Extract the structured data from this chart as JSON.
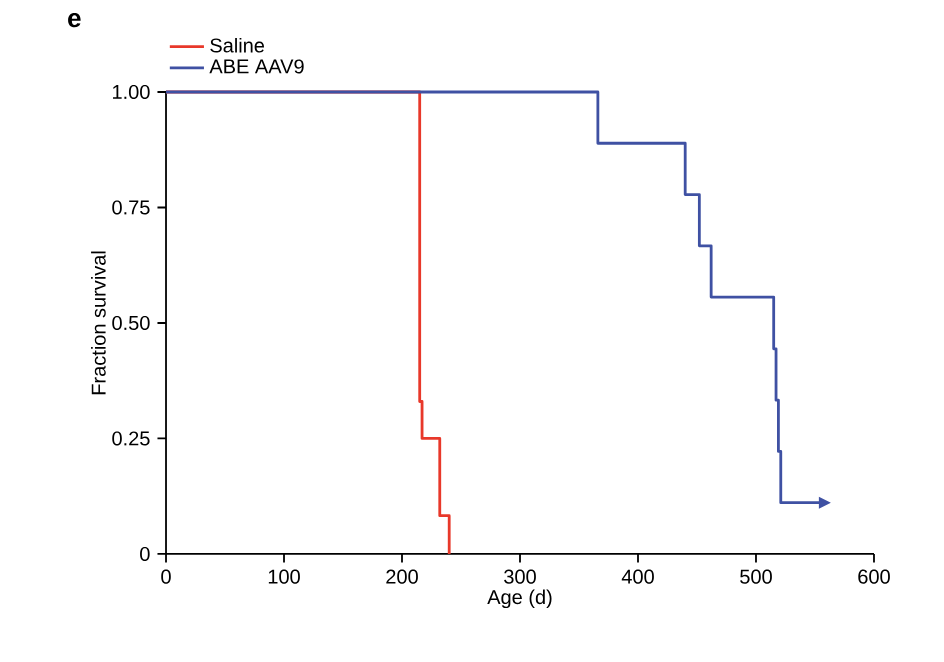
{
  "chart_data": {
    "type": "step",
    "xlabel": "Age (d)",
    "ylabel": "Fraction survival",
    "annotations": [
      "e"
    ],
    "series": [
      {
        "name": "Saline",
        "color": "#e8382a",
        "x": [
          0,
          215,
          217,
          232,
          240
        ],
        "values": [
          1,
          0.33,
          0.25,
          0.083,
          0
        ]
      },
      {
        "name": "ABE AAV9",
        "color": "#3f51a3",
        "x": [
          0,
          366,
          440,
          452,
          462,
          515,
          517,
          519,
          521,
          555
        ],
        "values": [
          1,
          0.889,
          0.778,
          0.667,
          0.556,
          0.444,
          0.333,
          0.222,
          0.111,
          0.111
        ]
      }
    ],
    "xlim": [
      0,
      600
    ],
    "xticks": [
      0,
      100,
      200,
      300,
      400,
      500,
      600
    ],
    "ylim": [
      0,
      1
    ],
    "yticks": [
      {
        "value": 0,
        "label": "0"
      },
      {
        "value": 0.25,
        "label": "0.25"
      },
      {
        "value": 0.5,
        "label": "0.50"
      },
      {
        "value": 0.75,
        "label": "0.75"
      },
      {
        "value": 1,
        "label": "1.00"
      }
    ],
    "grid": false,
    "legend": "top left",
    "marker": "none",
    "line_style": "solid"
  }
}
